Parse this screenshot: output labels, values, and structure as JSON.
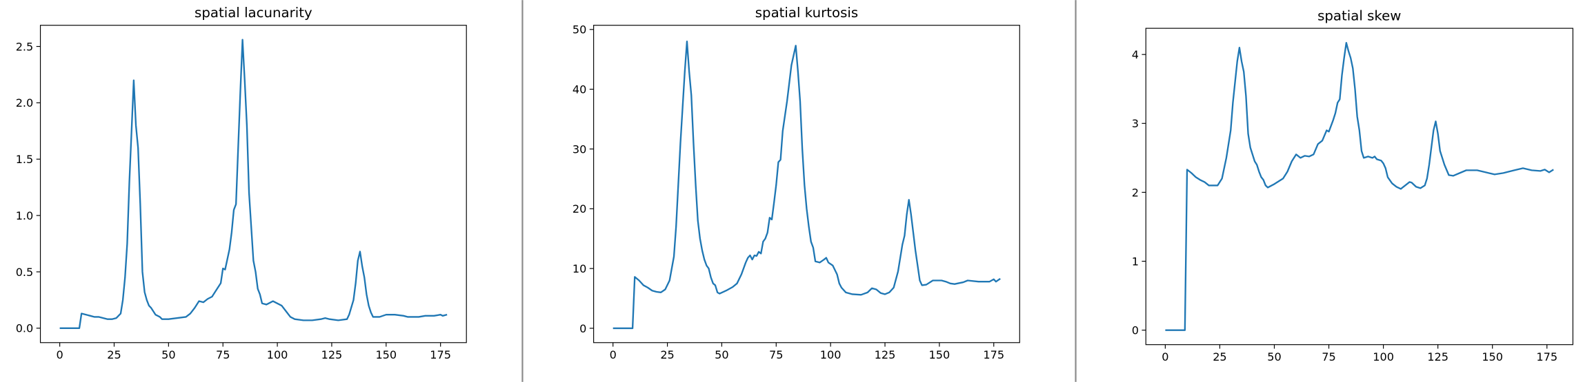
{
  "chart_data": [
    {
      "type": "line",
      "title": "spatial lacunarity",
      "color": "#1f77b4",
      "x": [
        0,
        9,
        10,
        12,
        14,
        16,
        18,
        20,
        22,
        24,
        26,
        28,
        29,
        30,
        31,
        32,
        33,
        34,
        35,
        36,
        37,
        38,
        39,
        40,
        41,
        42,
        43,
        44,
        46,
        47,
        50,
        54,
        58,
        60,
        62,
        64,
        66,
        68,
        70,
        72,
        74,
        75,
        76,
        78,
        79,
        80,
        81,
        82,
        83,
        84,
        85,
        86,
        87,
        88,
        89,
        90,
        91,
        92,
        93,
        95,
        97,
        98,
        100,
        102,
        104,
        106,
        108,
        112,
        116,
        120,
        122,
        124,
        128,
        132,
        133,
        135,
        136,
        137,
        138,
        139,
        140,
        141,
        142,
        143,
        144,
        147,
        150,
        154,
        158,
        160,
        165,
        168,
        172,
        175,
        176,
        178
      ],
      "values": [
        0,
        0,
        0.13,
        0.12,
        0.11,
        0.1,
        0.1,
        0.09,
        0.08,
        0.08,
        0.09,
        0.13,
        0.25,
        0.45,
        0.75,
        1.3,
        1.75,
        2.2,
        1.8,
        1.6,
        1.1,
        0.5,
        0.32,
        0.25,
        0.2,
        0.18,
        0.15,
        0.12,
        0.1,
        0.08,
        0.08,
        0.09,
        0.1,
        0.13,
        0.18,
        0.24,
        0.23,
        0.26,
        0.28,
        0.34,
        0.4,
        0.53,
        0.52,
        0.7,
        0.85,
        1.05,
        1.1,
        1.6,
        2.1,
        2.56,
        2.2,
        1.8,
        1.2,
        0.9,
        0.6,
        0.5,
        0.35,
        0.3,
        0.22,
        0.21,
        0.23,
        0.24,
        0.22,
        0.2,
        0.15,
        0.1,
        0.08,
        0.07,
        0.07,
        0.08,
        0.09,
        0.08,
        0.07,
        0.08,
        0.12,
        0.25,
        0.4,
        0.6,
        0.68,
        0.55,
        0.45,
        0.3,
        0.2,
        0.14,
        0.1,
        0.1,
        0.12,
        0.12,
        0.11,
        0.1,
        0.1,
        0.11,
        0.11,
        0.12,
        0.11,
        0.12
      ],
      "xlim": [
        -8.9,
        186.9
      ],
      "ylim": [
        -0.128,
        2.688
      ],
      "xticks": [
        0,
        25,
        50,
        75,
        100,
        125,
        150,
        175
      ],
      "yticks": [
        {
          "value": 0,
          "label": "0.0"
        },
        {
          "value": 0.5,
          "label": "0.5"
        },
        {
          "value": 1,
          "label": "1.0"
        },
        {
          "value": 1.5,
          "label": "1.5"
        },
        {
          "value": 2,
          "label": "2.0"
        },
        {
          "value": 2.5,
          "label": "2.5"
        }
      ]
    },
    {
      "type": "line",
      "title": "spatial kurtosis",
      "color": "#1f77b4",
      "x": [
        0,
        9,
        10,
        12,
        14,
        16,
        18,
        20,
        22,
        24,
        26,
        28,
        29,
        30,
        31,
        32,
        33,
        34,
        35,
        36,
        37,
        38,
        39,
        40,
        41,
        42,
        43,
        44,
        45,
        46,
        47,
        48,
        49,
        52,
        55,
        57,
        59,
        61,
        62,
        63,
        64,
        65,
        66,
        67,
        68,
        69,
        70,
        71,
        72,
        73,
        74,
        75,
        76,
        77,
        78,
        80,
        82,
        84,
        85,
        86,
        87,
        88,
        89,
        90,
        91,
        92,
        93,
        95,
        97,
        98,
        99,
        101,
        103,
        104,
        105,
        107,
        110,
        114,
        117,
        119,
        121,
        123,
        125,
        127,
        129,
        131,
        133,
        134,
        135,
        136,
        137,
        138,
        139,
        140,
        141,
        142,
        144,
        147,
        151,
        153,
        155,
        157,
        161,
        163,
        168,
        173,
        175,
        176,
        178
      ],
      "values": [
        0,
        0,
        8.6,
        8,
        7.2,
        6.8,
        6.3,
        6.1,
        6.0,
        6.5,
        8,
        12,
        17,
        24,
        31,
        37,
        43,
        48,
        43,
        39,
        31,
        24,
        18,
        15,
        13,
        11.5,
        10.5,
        10,
        8.5,
        7.5,
        7.2,
        6.0,
        5.8,
        6.3,
        6.9,
        7.5,
        9,
        11,
        11.8,
        12.2,
        11.5,
        12.2,
        12.1,
        12.8,
        12.5,
        14.5,
        15,
        16,
        18.5,
        18.2,
        21,
        24,
        27.8,
        28.2,
        33,
        38,
        44,
        47.3,
        43,
        38,
        30,
        24,
        20,
        17,
        14.5,
        13.5,
        11.2,
        11,
        11.5,
        11.8,
        11,
        10.5,
        9,
        7.5,
        6.8,
        6,
        5.7,
        5.6,
        6,
        6.7,
        6.5,
        5.9,
        5.7,
        6,
        6.8,
        9.5,
        14,
        15.5,
        19,
        21.5,
        19,
        16,
        13,
        10.5,
        8,
        7.2,
        7.3,
        8,
        8,
        7.8,
        7.5,
        7.4,
        7.7,
        8,
        7.8,
        7.8,
        8.2,
        7.8,
        8.3
      ],
      "xlim": [
        -8.9,
        186.9
      ],
      "ylim": [
        -2.4,
        50.7
      ],
      "xticks": [
        0,
        25,
        50,
        75,
        100,
        125,
        150,
        175
      ],
      "yticks": [
        0,
        10,
        20,
        30,
        40,
        50
      ]
    },
    {
      "type": "line",
      "title": "spatial skew",
      "color": "#1f77b4",
      "x": [
        0,
        9,
        10,
        12,
        14,
        16,
        18,
        20,
        24,
        26,
        28,
        30,
        31,
        32,
        33,
        34,
        35,
        36,
        37,
        38,
        39,
        40,
        41,
        42,
        43,
        44,
        45,
        46,
        47,
        50,
        54,
        56,
        58,
        60,
        62,
        64,
        66,
        68,
        70,
        72,
        74,
        75,
        77,
        78,
        79,
        80,
        81,
        82,
        83,
        84,
        85,
        86,
        87,
        88,
        89,
        90,
        91,
        93,
        95,
        96,
        97,
        99,
        100,
        101,
        102,
        104,
        106,
        108,
        110,
        112,
        113,
        115,
        117,
        119,
        120,
        121,
        122,
        123,
        124,
        125,
        126,
        128,
        130,
        132,
        135,
        138,
        143,
        147,
        151,
        155,
        160,
        164,
        168,
        172,
        174,
        176,
        178
      ],
      "values": [
        0,
        0,
        2.33,
        2.28,
        2.22,
        2.18,
        2.15,
        2.1,
        2.1,
        2.2,
        2.5,
        2.9,
        3.3,
        3.6,
        3.9,
        4.1,
        3.9,
        3.75,
        3.4,
        2.85,
        2.65,
        2.55,
        2.45,
        2.4,
        2.3,
        2.22,
        2.18,
        2.1,
        2.07,
        2.12,
        2.2,
        2.3,
        2.45,
        2.55,
        2.5,
        2.53,
        2.52,
        2.55,
        2.7,
        2.75,
        2.9,
        2.88,
        3.05,
        3.15,
        3.3,
        3.35,
        3.7,
        3.95,
        4.17,
        4.05,
        3.95,
        3.8,
        3.5,
        3.1,
        2.9,
        2.6,
        2.5,
        2.52,
        2.5,
        2.52,
        2.48,
        2.46,
        2.42,
        2.35,
        2.22,
        2.13,
        2.08,
        2.05,
        2.1,
        2.15,
        2.14,
        2.08,
        2.06,
        2.1,
        2.2,
        2.4,
        2.65,
        2.9,
        3.03,
        2.85,
        2.6,
        2.4,
        2.25,
        2.24,
        2.28,
        2.32,
        2.32,
        2.29,
        2.26,
        2.28,
        2.32,
        2.35,
        2.32,
        2.31,
        2.33,
        2.29,
        2.33
      ],
      "xlim": [
        -8.9,
        186.9
      ],
      "ylim": [
        -0.21,
        4.38
      ],
      "xticks": [
        0,
        25,
        50,
        75,
        100,
        125,
        150,
        175
      ],
      "yticks": [
        0,
        1,
        2,
        3,
        4
      ]
    }
  ]
}
